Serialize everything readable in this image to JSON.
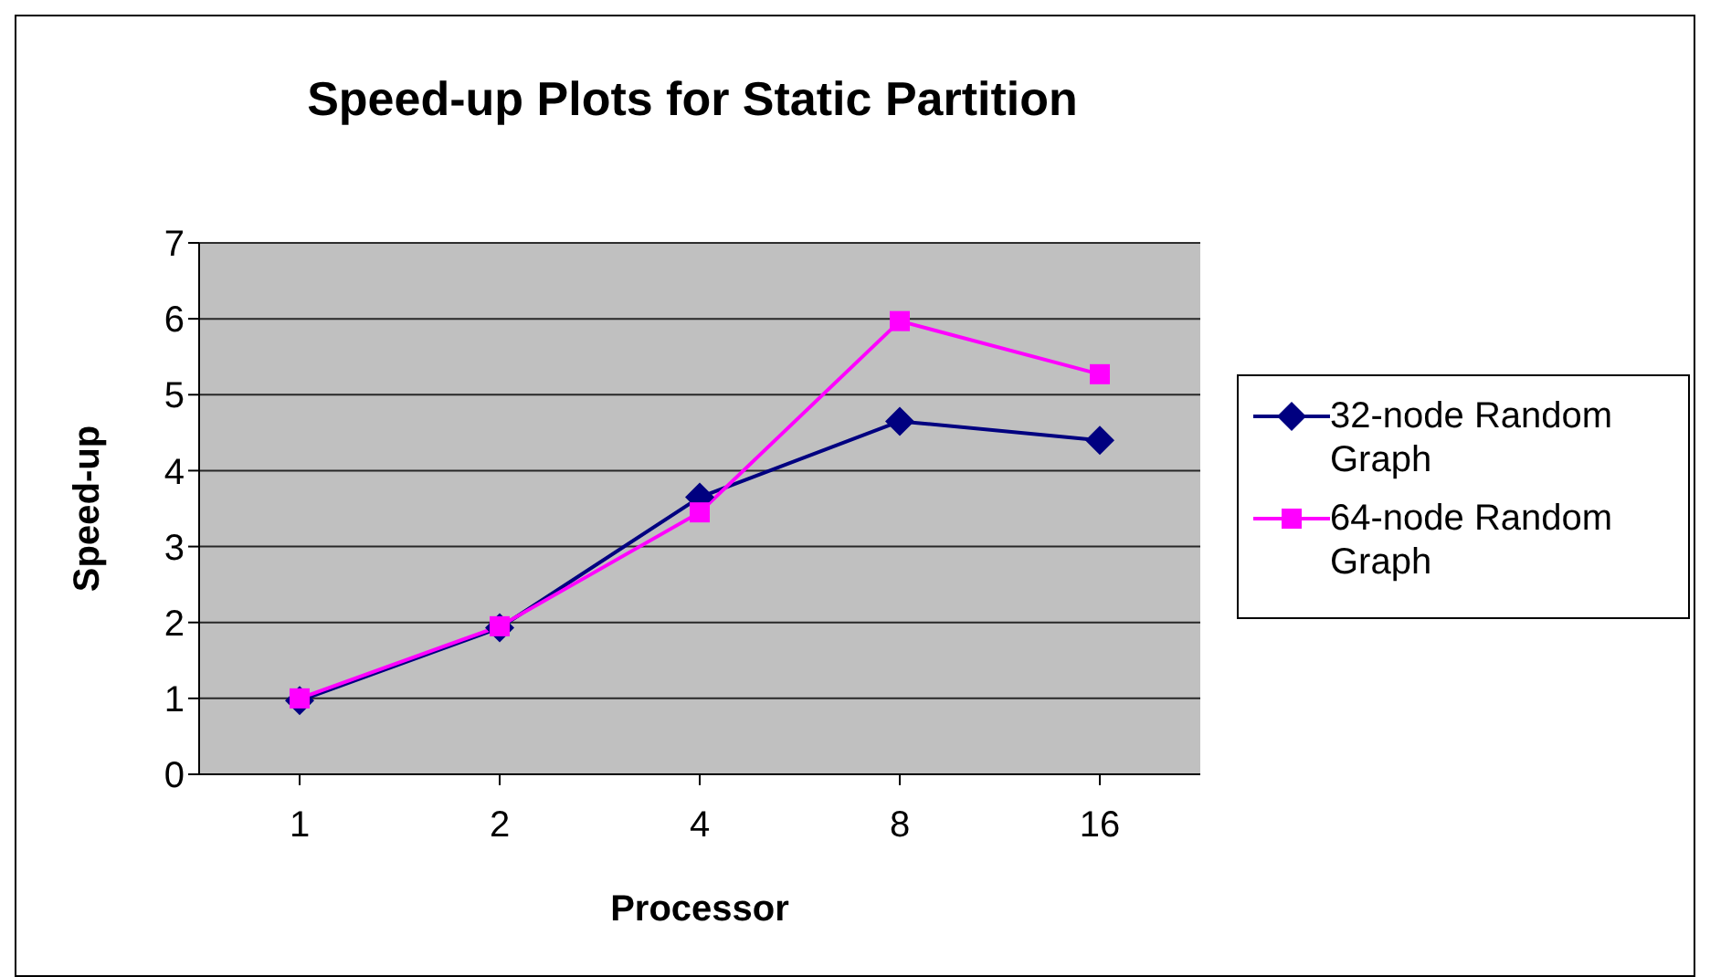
{
  "chart_data": {
    "type": "line",
    "title": "Speed-up Plots for Static Partition",
    "xlabel": "Processor",
    "ylabel": "Speed-up",
    "categories": [
      "1",
      "2",
      "4",
      "8",
      "16"
    ],
    "series": [
      {
        "name": "32-node Random Graph",
        "color": "#000080",
        "marker": "diamond",
        "values": [
          0.97,
          1.93,
          3.65,
          4.65,
          4.4
        ]
      },
      {
        "name": "64-node Random Graph",
        "color": "#ff00ff",
        "marker": "square",
        "values": [
          1.0,
          1.95,
          3.45,
          5.97,
          5.27
        ]
      }
    ],
    "ylim": [
      0,
      7
    ],
    "yticks": [
      0,
      1,
      2,
      3,
      4,
      5,
      6,
      7
    ],
    "grid": "y",
    "legend": "right",
    "line_style": "solid"
  }
}
